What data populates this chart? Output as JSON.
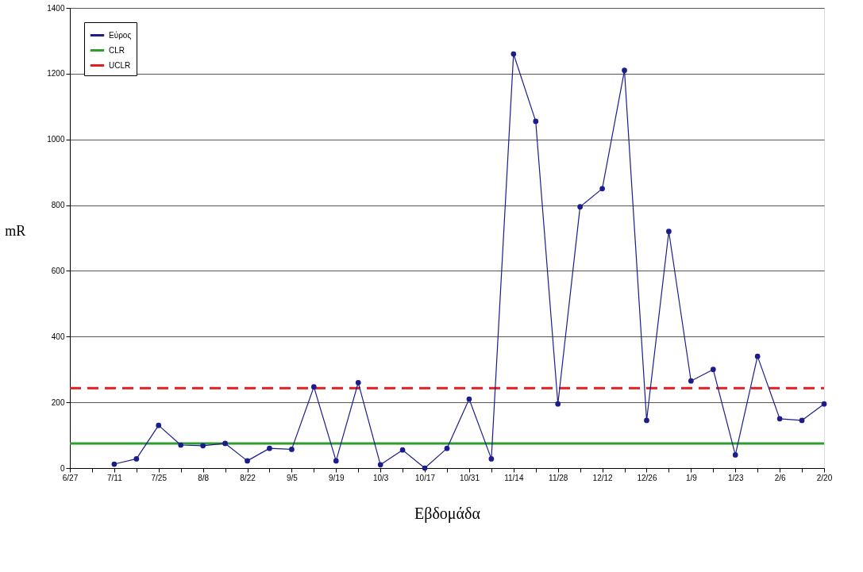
{
  "chart_data": {
    "type": "line",
    "xlabel": "Εβδομάδα",
    "ylabel": "mR",
    "categories": [
      "6/27",
      null,
      "7/11",
      null,
      "7/25",
      null,
      "8/8",
      null,
      "8/22",
      null,
      "9/5",
      null,
      "9/19",
      null,
      "10/3",
      null,
      "10/17",
      null,
      "10/31",
      null,
      "11/14",
      null,
      "11/28",
      null,
      "12/12",
      null,
      "12/26",
      null,
      "1/9",
      null,
      "1/23",
      null,
      "2/6",
      null,
      "2/20"
    ],
    "series": [
      {
        "name": "Εύρος",
        "color": "#1c1c8c",
        "values": [
          null,
          null,
          12,
          28,
          130,
          70,
          68,
          75,
          22,
          60,
          57,
          247,
          22,
          260,
          10,
          55,
          0,
          60,
          210,
          28,
          1260,
          1055,
          195,
          795,
          850,
          1210,
          145,
          720,
          265,
          300,
          40,
          340,
          150,
          145,
          195
        ]
      }
    ],
    "ref_lines": [
      {
        "axis": "y",
        "value": 75,
        "label": "CLR",
        "color": "#2e9e2e",
        "line_style": "solid"
      },
      {
        "axis": "y",
        "value": 243,
        "label": "UCLR",
        "color": "#e02020",
        "line_style": "dashed"
      }
    ],
    "ylim": [
      0,
      1400
    ],
    "yticks": [
      0,
      200,
      400,
      600,
      800,
      1000,
      1200,
      1400
    ],
    "grid": "y",
    "legend": "top left",
    "marker": "circle",
    "line_style": "solid"
  }
}
